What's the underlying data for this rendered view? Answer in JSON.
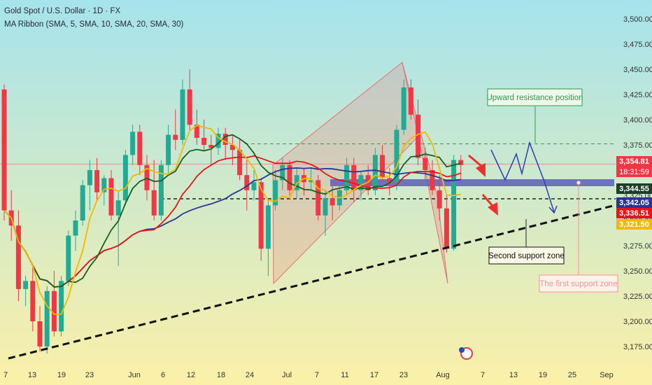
{
  "header": {
    "line1": "Gold Spot / U.S. Dollar · 1D · FX",
    "line2": "MA Ribbon (SMA, 5, SMA, 10, SMA, 20, SMA, 30)"
  },
  "colors": {
    "bg_top": "#a6e3ec",
    "bg_bottom": "#fbf0a8",
    "up": "#22ab94",
    "down": "#f23645",
    "sma5": "#f5b800",
    "sma10": "#1b5e20",
    "sma20": "#e8141c",
    "sma30": "#283593",
    "zone": "#5c5fb8",
    "annot_red": "#ef2f2f",
    "annot_blue": "#2a3fb0",
    "resist_green": "#2e9a4a",
    "pink": "#f48fa0"
  },
  "chart_data": {
    "type": "candlestick",
    "y_ticks": [
      3175,
      3200,
      3225,
      3250,
      3275,
      3300,
      3325,
      3350,
      3375,
      3400,
      3425,
      3450,
      3475,
      3500
    ],
    "x_ticks": [
      "7",
      "13",
      "19",
      "23",
      "Jun",
      "6",
      "12",
      "18",
      "24",
      "Jul",
      "7",
      "11",
      "17",
      "23",
      "Aug",
      "7",
      "13",
      "19",
      "25",
      "Sep"
    ],
    "price_tags": [
      {
        "value": 3354.81,
        "label": "3,354.81",
        "color": "#f23645",
        "sub": "18:31:59"
      },
      {
        "value": 3344.55,
        "label": "3,344.55",
        "color": "#1b3d2a"
      },
      {
        "value": 3342.05,
        "label": "3,342.05",
        "color": "#283593"
      },
      {
        "value": 3336.51,
        "label": "3,336.51",
        "color": "#e8141c"
      },
      {
        "value": 3321.5,
        "label": "3,321.50",
        "color": "#f5b800"
      }
    ],
    "candles": [
      [
        3430,
        3435,
        3300,
        3310
      ],
      [
        3310,
        3330,
        3280,
        3295
      ],
      [
        3295,
        3310,
        3220,
        3232
      ],
      [
        3232,
        3245,
        3215,
        3240
      ],
      [
        3240,
        3255,
        3190,
        3200
      ],
      [
        3200,
        3215,
        3170,
        3175
      ],
      [
        3175,
        3235,
        3168,
        3230
      ],
      [
        3230,
        3250,
        3185,
        3190
      ],
      [
        3190,
        3245,
        3185,
        3240
      ],
      [
        3240,
        3290,
        3235,
        3285
      ],
      [
        3285,
        3310,
        3270,
        3300
      ],
      [
        3300,
        3340,
        3295,
        3335
      ],
      [
        3335,
        3360,
        3310,
        3350
      ],
      [
        3350,
        3362,
        3320,
        3328
      ],
      [
        3328,
        3345,
        3315,
        3342
      ],
      [
        3342,
        3350,
        3300,
        3305
      ],
      [
        3305,
        3330,
        3255,
        3320
      ],
      [
        3320,
        3370,
        3315,
        3365
      ],
      [
        3365,
        3395,
        3355,
        3388
      ],
      [
        3388,
        3395,
        3345,
        3355
      ],
      [
        3355,
        3365,
        3320,
        3330
      ],
      [
        3330,
        3360,
        3300,
        3305
      ],
      [
        3305,
        3360,
        3300,
        3355
      ],
      [
        3355,
        3395,
        3345,
        3385
      ],
      [
        3385,
        3410,
        3370,
        3380
      ],
      [
        3380,
        3440,
        3375,
        3430
      ],
      [
        3430,
        3450,
        3390,
        3395
      ],
      [
        3395,
        3410,
        3375,
        3382
      ],
      [
        3382,
        3400,
        3370,
        3375
      ],
      [
        3375,
        3385,
        3355,
        3372
      ],
      [
        3372,
        3392,
        3365,
        3386
      ],
      [
        3386,
        3392,
        3360,
        3375
      ],
      [
        3375,
        3385,
        3355,
        3370
      ],
      [
        3370,
        3380,
        3340,
        3345
      ],
      [
        3345,
        3360,
        3310,
        3330
      ],
      [
        3330,
        3350,
        3320,
        3338
      ],
      [
        3338,
        3342,
        3260,
        3272
      ],
      [
        3272,
        3320,
        3245,
        3315
      ],
      [
        3315,
        3350,
        3310,
        3340
      ],
      [
        3340,
        3362,
        3330,
        3355
      ],
      [
        3355,
        3360,
        3325,
        3330
      ],
      [
        3330,
        3352,
        3322,
        3345
      ],
      [
        3345,
        3352,
        3325,
        3338
      ],
      [
        3338,
        3352,
        3330,
        3340
      ],
      [
        3340,
        3345,
        3300,
        3305
      ],
      [
        3305,
        3330,
        3285,
        3322
      ],
      [
        3322,
        3335,
        3300,
        3315
      ],
      [
        3315,
        3340,
        3310,
        3330
      ],
      [
        3330,
        3362,
        3325,
        3355
      ],
      [
        3355,
        3362,
        3318,
        3330
      ],
      [
        3330,
        3348,
        3320,
        3345
      ],
      [
        3345,
        3355,
        3325,
        3330
      ],
      [
        3330,
        3372,
        3325,
        3365
      ],
      [
        3365,
        3375,
        3338,
        3342
      ],
      [
        3342,
        3352,
        3325,
        3338
      ],
      [
        3338,
        3395,
        3330,
        3390
      ],
      [
        3390,
        3440,
        3385,
        3432
      ],
      [
        3432,
        3440,
        3400,
        3405
      ],
      [
        3405,
        3420,
        3355,
        3362
      ],
      [
        3362,
        3372,
        3340,
        3350
      ],
      [
        3350,
        3360,
        3325,
        3330
      ],
      [
        3330,
        3345,
        3300,
        3312
      ],
      [
        3312,
        3325,
        3268,
        3272
      ],
      [
        3272,
        3365,
        3270,
        3360
      ],
      [
        3360,
        3365,
        3340,
        3355
      ]
    ]
  },
  "annotations": {
    "resistance_label": "Upward resistance position",
    "second_support_label": "Second support zone",
    "first_support_label": "The first support zone"
  }
}
